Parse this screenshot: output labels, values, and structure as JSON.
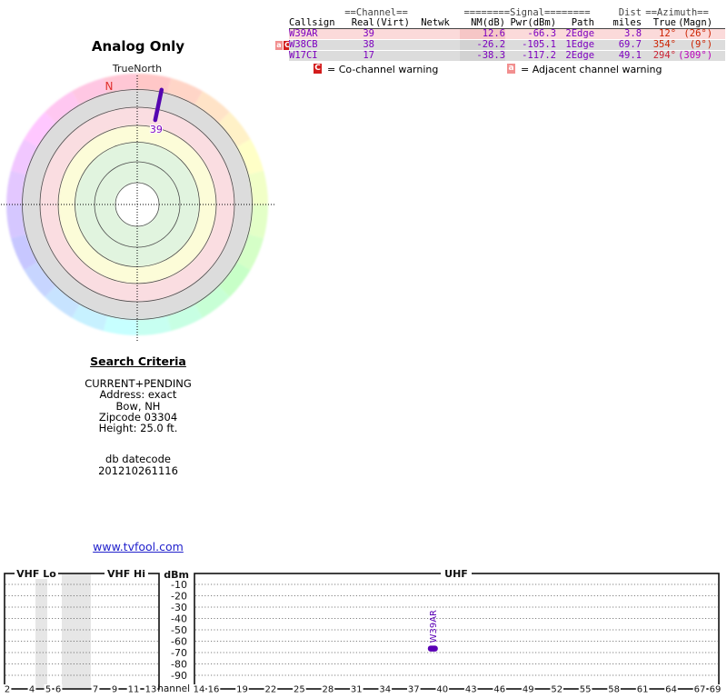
{
  "title": "Analog Only",
  "radar": {
    "true_north_label": "TrueNorth",
    "magnetic_north_label": "N",
    "line_label": "39",
    "line_color": "#5505b0",
    "ring_colors": {
      "gray": "#dcdcdc",
      "pink": "#fadde1",
      "yellow": "#fcfcd8",
      "green": "#e1f4df",
      "center": "#ffffff"
    }
  },
  "table": {
    "group_headers": {
      "channel": "==Channel==",
      "signal": "========Signal========",
      "dist": "Dist",
      "azimuth": "==Azimuth=="
    },
    "col_headers": {
      "callsign": "Callsign",
      "real": "Real",
      "virt": "(Virt)",
      "netwk": "Netwk",
      "nm": "NM(dB)",
      "pwr": "Pwr(dBm)",
      "path": "Path",
      "miles": "miles",
      "true": "True",
      "magn": "(Magn)"
    },
    "rows": [
      {
        "callsign": "W39AR",
        "real": "39",
        "virt": "",
        "netwk": "",
        "nm": "12.6",
        "pwr": "-66.3",
        "path": "2Edge",
        "miles": "3.8",
        "true": "12°",
        "magn": "(26°)",
        "true_color": "#cc2200",
        "magn_color": "#cc2200",
        "row_bg": "#fbdada",
        "nm_bg": "#f6c6c6"
      },
      {
        "callsign": "W38CB",
        "real": "38",
        "virt": "",
        "netwk": "",
        "nm": "-26.2",
        "pwr": "-105.1",
        "path": "1Edge",
        "miles": "69.7",
        "true": "354°",
        "magn": "(9°)",
        "true_color": "#cc2200",
        "magn_color": "#cc2200",
        "row_bg": "#dcdcdc",
        "nm_bg": "#d2d2d2"
      },
      {
        "callsign": "W17CI",
        "real": "17",
        "virt": "",
        "netwk": "",
        "nm": "-38.3",
        "pwr": "-117.2",
        "path": "2Edge",
        "miles": "49.1",
        "true": "294°",
        "magn": "(309°)",
        "true_color": "#cc2233",
        "magn_color": "#bb00bb",
        "row_bg": "#dcdcdc",
        "nm_bg": "#d2d2d2"
      }
    ]
  },
  "legend": {
    "co": {
      "symbol": "C",
      "text": "= Co-channel warning",
      "color": "#d31c1c"
    },
    "adj": {
      "symbol": "a",
      "text": "= Adjacent channel warning",
      "color": "#f28f8f"
    }
  },
  "search": {
    "heading": "Search Criteria",
    "lines": [
      "CURRENT+PENDING",
      "Address: exact",
      "Bow, NH",
      "Zipcode 03304",
      "Height: 25.0 ft."
    ],
    "db_lines": [
      "db datecode",
      "201210261116"
    ]
  },
  "link": "www.tvfool.com",
  "chart_data": [
    {
      "type": "radar",
      "title": "Analog Only",
      "orientation_label": "TrueNorth",
      "magnetic_north_azimuth_deg": -14,
      "rings_outer_to_inner": [
        "azimuth-rainbow",
        "gray",
        "pink",
        "yellow",
        "green",
        "green",
        "white"
      ],
      "stations": [
        {
          "callsign": "W39AR",
          "channel": 39,
          "azimuth_true_deg": 12,
          "azimuth_magn_deg": 26,
          "distance_miles": 3.8,
          "nm_db": 12.6
        }
      ]
    },
    {
      "type": "bar",
      "ylabel": "dBm",
      "xlabel": "Channel",
      "ylim": [
        -95,
        -5
      ],
      "yticks": [
        -10,
        -20,
        -30,
        -40,
        -50,
        -60,
        -70,
        -80,
        -90
      ],
      "grid": "dotted horizontal",
      "sections": [
        {
          "label": "VHF Lo",
          "ticks": [
            2,
            4,
            5,
            6
          ]
        },
        {
          "label": "VHF Hi",
          "ticks": [
            7,
            9,
            11,
            13
          ]
        },
        {
          "label": "UHF",
          "ticks": [
            14,
            16,
            19,
            22,
            25,
            28,
            31,
            34,
            37,
            40,
            43,
            46,
            49,
            52,
            55,
            58,
            61,
            64,
            67,
            69
          ]
        }
      ],
      "points": [
        {
          "label": "W39AR",
          "channel": 39,
          "dbm": -66.3,
          "color": "#5a00b5"
        }
      ]
    }
  ]
}
